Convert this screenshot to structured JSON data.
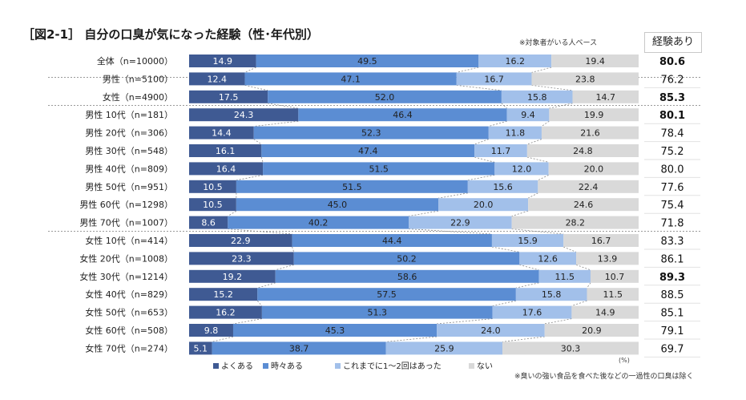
{
  "title": "［図2-1］ 自分の口臭が気になった経験（性･年代別）",
  "note_top": "※対象者がいる人ベース",
  "experience_header": "経験あり",
  "note_bottom": "※臭いの強い食品を食べた後などの一過性の口臭は除く",
  "unit": "(%)",
  "colors": {
    "yoku": "#3f5a93",
    "tokidoki": "#5b8dd3",
    "korema": "#a2c0ea",
    "nai": "#d9d9d9"
  },
  "chart_data": {
    "type": "bar",
    "orientation": "horizontal",
    "stacked": true,
    "percent": true,
    "categories": [
      "全体（n=10000）",
      "男性（n=5100）",
      "女性（n=4900）",
      "男性 10代（n=181）",
      "男性 20代（n=306）",
      "男性 30代（n=548）",
      "男性 40代（n=809）",
      "男性 50代（n=951）",
      "男性 60代（n=1298）",
      "男性 70代（n=1007）",
      "女性 10代（n=414）",
      "女性 20代（n=1008）",
      "女性 30代（n=1214）",
      "女性 40代（n=829）",
      "女性 50代（n=653）",
      "女性 60代（n=508）",
      "女性 70代（n=274）"
    ],
    "series": [
      {
        "name": "よくある",
        "values": [
          14.9,
          12.4,
          17.5,
          24.3,
          14.4,
          16.1,
          16.4,
          10.5,
          10.5,
          8.6,
          22.9,
          23.3,
          19.2,
          15.2,
          16.2,
          9.8,
          5.1
        ]
      },
      {
        "name": "時々ある",
        "values": [
          49.5,
          47.1,
          52.0,
          46.4,
          52.3,
          47.4,
          51.5,
          51.5,
          45.0,
          40.2,
          44.4,
          50.2,
          58.6,
          57.5,
          51.3,
          45.3,
          38.7
        ]
      },
      {
        "name": "これまでに1～2回はあった",
        "values": [
          16.2,
          16.7,
          15.8,
          9.4,
          11.8,
          11.7,
          12.0,
          15.6,
          20.0,
          22.9,
          15.9,
          12.6,
          11.5,
          15.8,
          17.6,
          24.0,
          25.9
        ]
      },
      {
        "name": "ない",
        "values": [
          19.4,
          23.8,
          14.7,
          19.9,
          21.6,
          24.8,
          20.0,
          22.4,
          24.6,
          28.2,
          16.7,
          13.9,
          10.7,
          11.5,
          14.9,
          20.9,
          30.3
        ]
      }
    ],
    "experience": [
      "80.6",
      "76.2",
      "85.3",
      "80.1",
      "78.4",
      "75.2",
      "80.0",
      "77.6",
      "75.4",
      "71.8",
      "83.3",
      "86.1",
      "89.3",
      "88.5",
      "85.1",
      "79.1",
      "69.7"
    ],
    "experience_bold": [
      true,
      false,
      true,
      true,
      false,
      false,
      false,
      false,
      false,
      false,
      false,
      false,
      true,
      false,
      false,
      false,
      false
    ],
    "legend_placement": "bottom"
  }
}
